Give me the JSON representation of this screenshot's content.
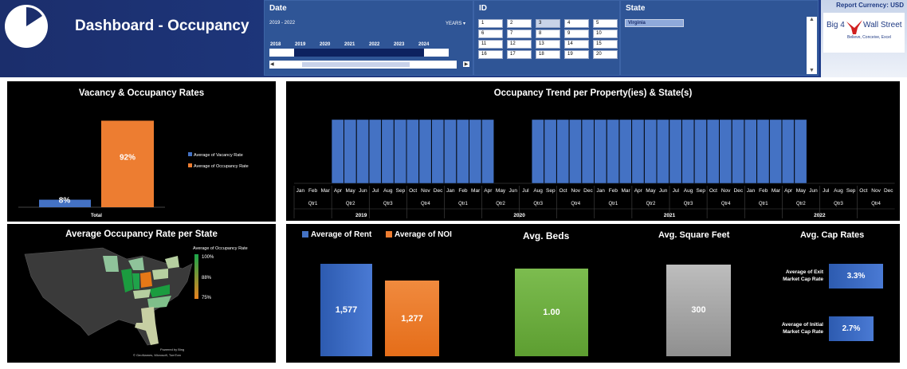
{
  "header": {
    "title": "Dashboard - Occupancy",
    "currency": "Report Currency: USD",
    "logo_line1": "Big 4",
    "logo_line2": "Wall Street",
    "logo_tag": "Believe, Conceive, Excel"
  },
  "date_slicer": {
    "label": "Date",
    "range": "2019 - 2022",
    "unit": "YEARS",
    "years": [
      "2018",
      "2019",
      "2020",
      "2021",
      "2022",
      "2023",
      "2024"
    ],
    "scroll_left": "◀",
    "scroll_right": "▶",
    "dropdown_icon": "chevron-down-icon"
  },
  "id_slicer": {
    "label": "ID",
    "items": [
      "1",
      "2",
      "3",
      "4",
      "5",
      "6",
      "7",
      "8",
      "9",
      "10",
      "11",
      "12",
      "13",
      "14",
      "15",
      "16",
      "17",
      "18",
      "19",
      "20"
    ],
    "selected": "3"
  },
  "state_slicer": {
    "label": "State",
    "items": [
      "Virginia"
    ],
    "scroll_up": "▲",
    "scroll_down": "▼"
  },
  "vacancy": {
    "title": "Vacancy & Occupancy Rates",
    "vac_label": "8%",
    "occ_label": "92%",
    "category": "Total",
    "legend": [
      {
        "name": "Average of Vacancy Rate",
        "color": "#4472c4"
      },
      {
        "name": "Average of Occupancy Rate",
        "color": "#ed7d31"
      }
    ]
  },
  "map": {
    "title": "Average Occupancy Rate per State",
    "legend_title": "Average of Occupancy Rate",
    "legend_max": "100%",
    "legend_mid": "88%",
    "legend_min": "75%",
    "credit1": "Powered by Bing",
    "credit2": "© GeoNames, Microsoft, TomTom"
  },
  "trend": {
    "title": "Occupancy Trend per Property(ies) & State(s)",
    "months": [
      "Jan",
      "Feb",
      "Mar",
      "Apr",
      "May",
      "Jun",
      "Jul",
      "Aug",
      "Sep",
      "Oct",
      "Nov",
      "Dec"
    ],
    "quarters": [
      "Qtr1",
      "Qtr2",
      "Qtr3",
      "Qtr4"
    ],
    "years": [
      "2019",
      "2020",
      "2021",
      "2022"
    ]
  },
  "kpi": {
    "rent_legend": "Average of Rent",
    "noi_legend": "Average of NOI",
    "beds_title": "Avg. Beds",
    "sqft_title": "Avg. Square Feet",
    "cap_title": "Avg. Cap Rates",
    "exit_label1": "Average of Exit",
    "exit_label2": "Market Cap Rate",
    "initial_label1": "Average of Initial",
    "initial_label2": "Market Cap Rate"
  },
  "chart_data": [
    {
      "type": "bar",
      "title": "Vacancy & Occupancy Rates",
      "categories": [
        "Total"
      ],
      "series": [
        {
          "name": "Average of Vacancy Rate",
          "values": [
            0.08
          ]
        },
        {
          "name": "Average of Occupancy Rate",
          "values": [
            0.92
          ]
        }
      ]
    },
    {
      "type": "bar",
      "title": "Occupancy Trend per Property(ies) & State(s)",
      "x": [
        "2019-01",
        "2019-02",
        "2019-03",
        "2019-04",
        "2019-05",
        "2019-06",
        "2019-07",
        "2019-08",
        "2019-09",
        "2019-10",
        "2019-11",
        "2019-12",
        "2020-01",
        "2020-02",
        "2020-03",
        "2020-04",
        "2020-05",
        "2020-06",
        "2020-07",
        "2020-08",
        "2020-09",
        "2020-10",
        "2020-11",
        "2020-12",
        "2021-01",
        "2021-02",
        "2021-03",
        "2021-04",
        "2021-05",
        "2021-06",
        "2021-07",
        "2021-08",
        "2021-09",
        "2021-10",
        "2021-11",
        "2021-12",
        "2022-01",
        "2022-02",
        "2022-03",
        "2022-04",
        "2022-05",
        "2022-06",
        "2022-07",
        "2022-08",
        "2022-09",
        "2022-10",
        "2022-11",
        "2022-12"
      ],
      "values": [
        0,
        0,
        0,
        1,
        1,
        1,
        1,
        1,
        1,
        1,
        1,
        1,
        1,
        1,
        1,
        1,
        0,
        0,
        0,
        1,
        1,
        1,
        1,
        1,
        1,
        1,
        1,
        1,
        1,
        1,
        1,
        1,
        1,
        1,
        1,
        1,
        1,
        1,
        1,
        1,
        1,
        0,
        0,
        0,
        0,
        0,
        0,
        0
      ]
    },
    {
      "type": "bar",
      "title": "",
      "categories": [
        "Average of Rent",
        "Average of NOI"
      ],
      "values": [
        1577,
        1277
      ],
      "labels": [
        "1,577",
        "1,277"
      ]
    },
    {
      "type": "bar",
      "title": "Avg. Beds",
      "categories": [
        "Avg. Beds"
      ],
      "values": [
        1.0
      ],
      "labels": [
        "1.00"
      ]
    },
    {
      "type": "bar",
      "title": "Avg. Square Feet",
      "categories": [
        "Avg. Square Feet"
      ],
      "values": [
        300
      ],
      "labels": [
        "300"
      ]
    },
    {
      "type": "bar",
      "title": "Avg. Cap Rates",
      "categories": [
        "Average of Exit Market Cap Rate",
        "Average of Initial Market Cap Rate"
      ],
      "values": [
        0.033,
        0.027
      ],
      "labels": [
        "3.3%",
        "2.7%"
      ]
    }
  ]
}
